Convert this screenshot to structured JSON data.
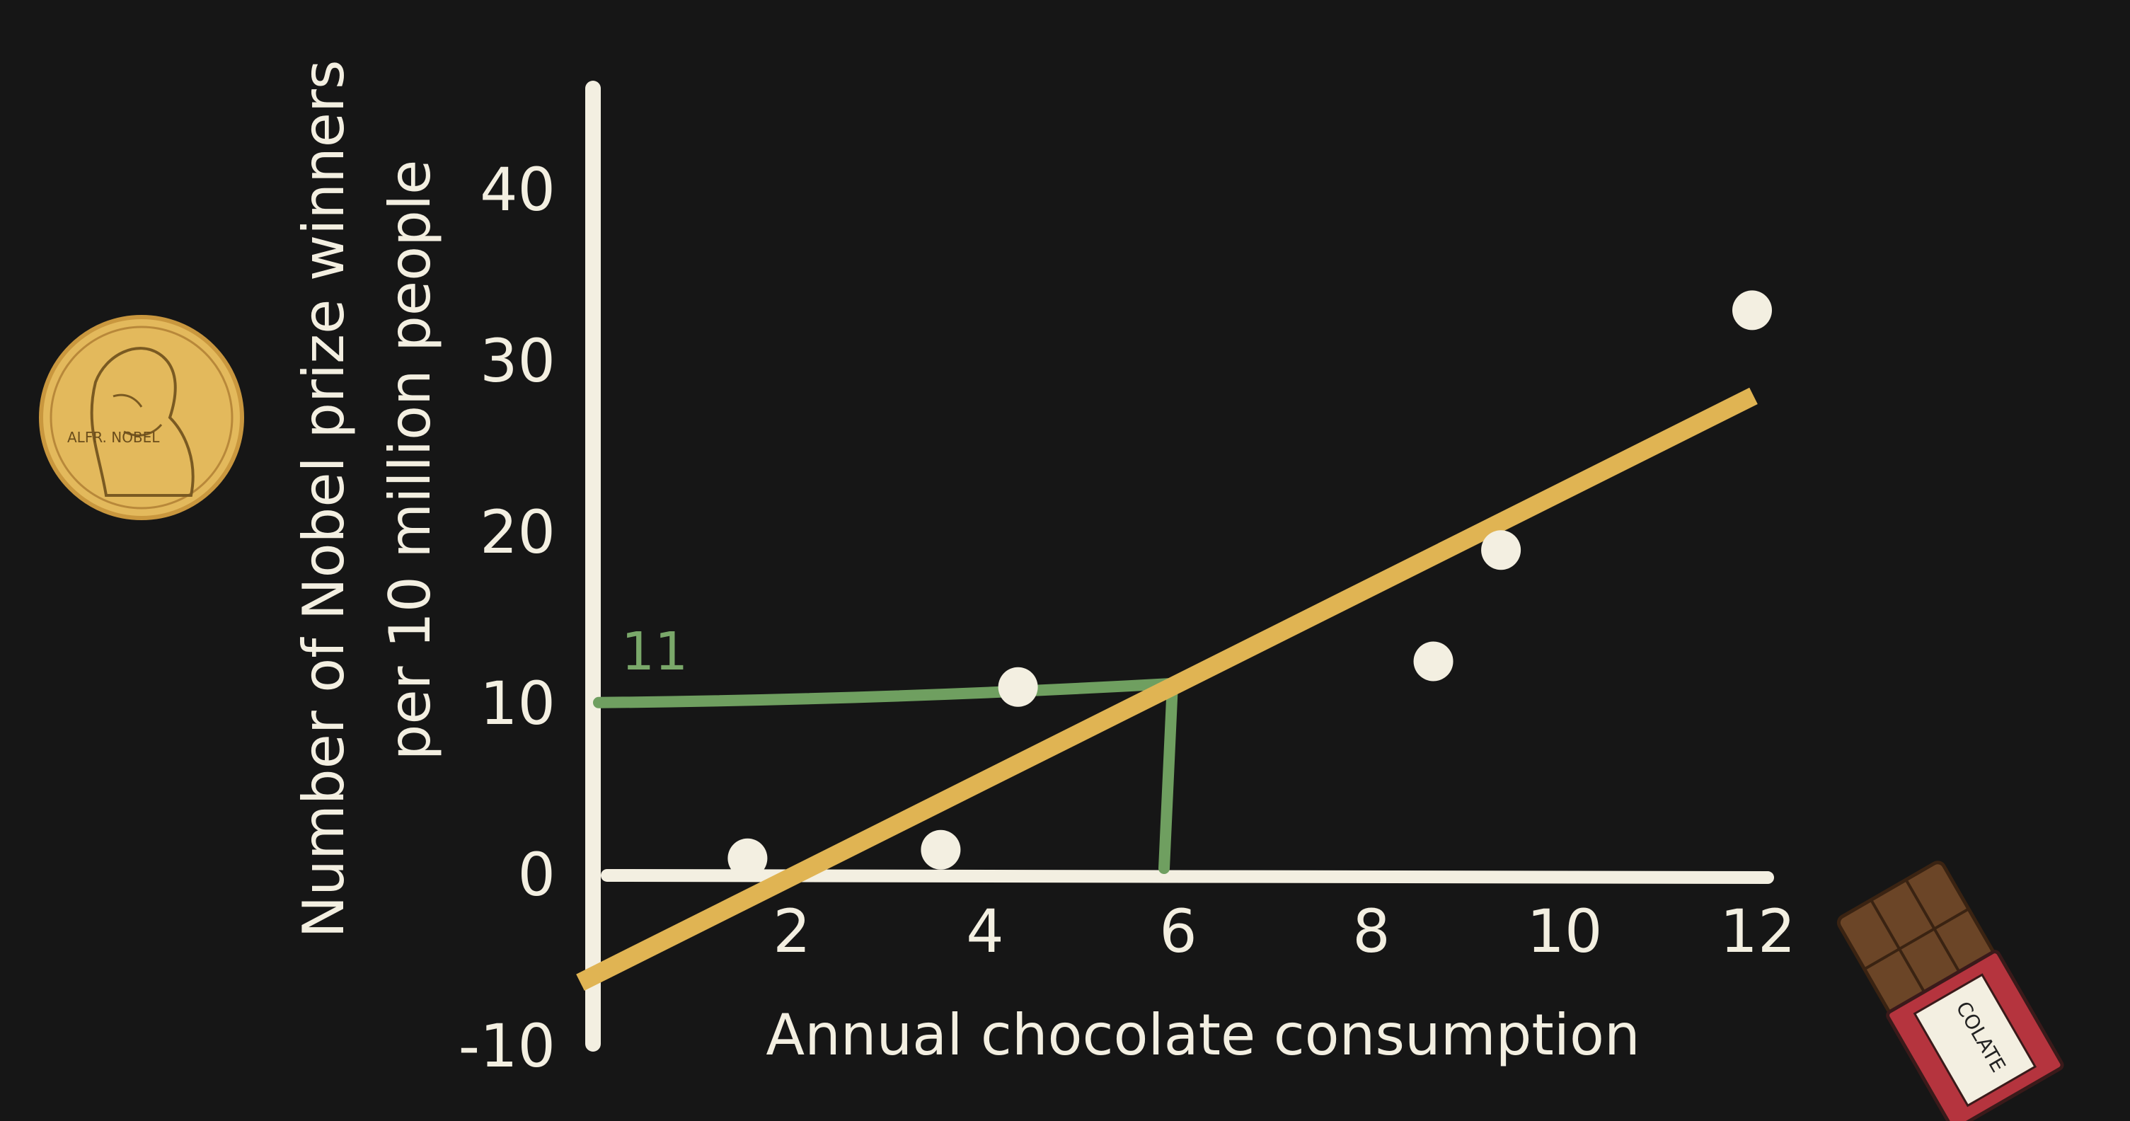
{
  "colors": {
    "background": "#161616",
    "axis": "#f3efe1",
    "points": "#f3efe1",
    "trend_line": "#e0b453",
    "reference": "#6f9f60",
    "medal": "#e3b95c",
    "chocolate_wrapper": "#b5343e"
  },
  "chart_data": {
    "type": "scatter",
    "title": "",
    "xlabel": "Annual chocolate consumption",
    "ylabel_line1": "Number of Nobel prize winners",
    "ylabel_line2": "per 10 million people",
    "xlim": [
      0,
      12
    ],
    "ylim": [
      -10,
      40
    ],
    "x_ticks": [
      2,
      4,
      6,
      8,
      10,
      12
    ],
    "y_ticks": [
      40,
      30,
      20,
      10,
      0,
      -10
    ],
    "x_tick_labels": [
      "2",
      "4",
      "6",
      "8",
      "10",
      "12"
    ],
    "y_tick_labels": [
      "40",
      "30",
      "20",
      "10",
      "0",
      "-10"
    ],
    "grid": false,
    "series": [
      {
        "points": [
          {
            "x": 1.6,
            "y": 1
          },
          {
            "x": 3.6,
            "y": 1.5
          },
          {
            "x": 4.4,
            "y": 11
          },
          {
            "x": 8.7,
            "y": 12.5
          },
          {
            "x": 9.4,
            "y": 19
          },
          {
            "x": 12,
            "y": 33
          }
        ]
      }
    ],
    "trend_line": {
      "x": [
        0,
        12
      ],
      "y": [
        -6,
        28
      ]
    },
    "annotation": {
      "label": "11",
      "x": 6,
      "y": 11
    }
  },
  "decorations": {
    "medal_text": "ALFR. NOBEL",
    "chocolate_text": "COLATE"
  }
}
